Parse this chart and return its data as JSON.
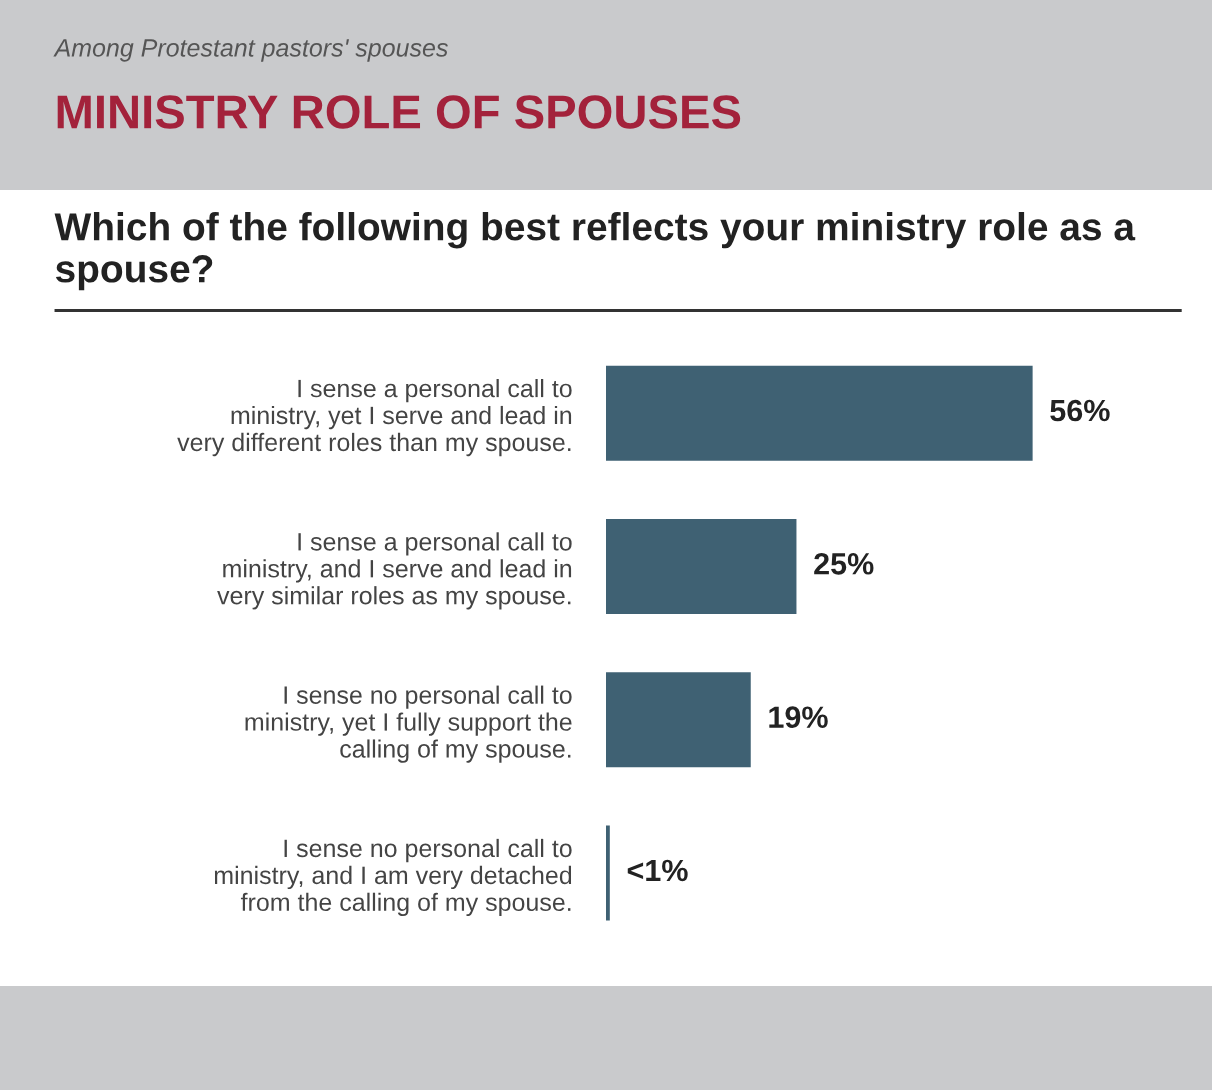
{
  "chart_data": {
    "type": "bar",
    "orientation": "horizontal",
    "subtitle": "Among Protestant pastors' spouses",
    "title": "MINISTRY ROLE OF SPOUSES",
    "annotations": [
      "Which of the following best reflects your ministry role as a spouse?"
    ],
    "categories": [
      "I sense a personal call to\nministry, yet I serve and lead in\nvery different roles than my spouse.",
      "I sense a personal call to\nministry, and I serve and lead in\nvery similar roles as my spouse.",
      "I sense no personal call to\nministry, yet I fully support the\ncalling of my spouse.",
      "I sense no personal call to\nministry, and I am very detached\nfrom the calling of my spouse."
    ],
    "values": [
      56,
      25,
      19,
      0.5
    ],
    "value_labels": [
      "56%",
      "25%",
      "19%",
      "<1%"
    ],
    "color": "#3f6173",
    "tick_labels": "y",
    "grid": false,
    "legend": false
  }
}
